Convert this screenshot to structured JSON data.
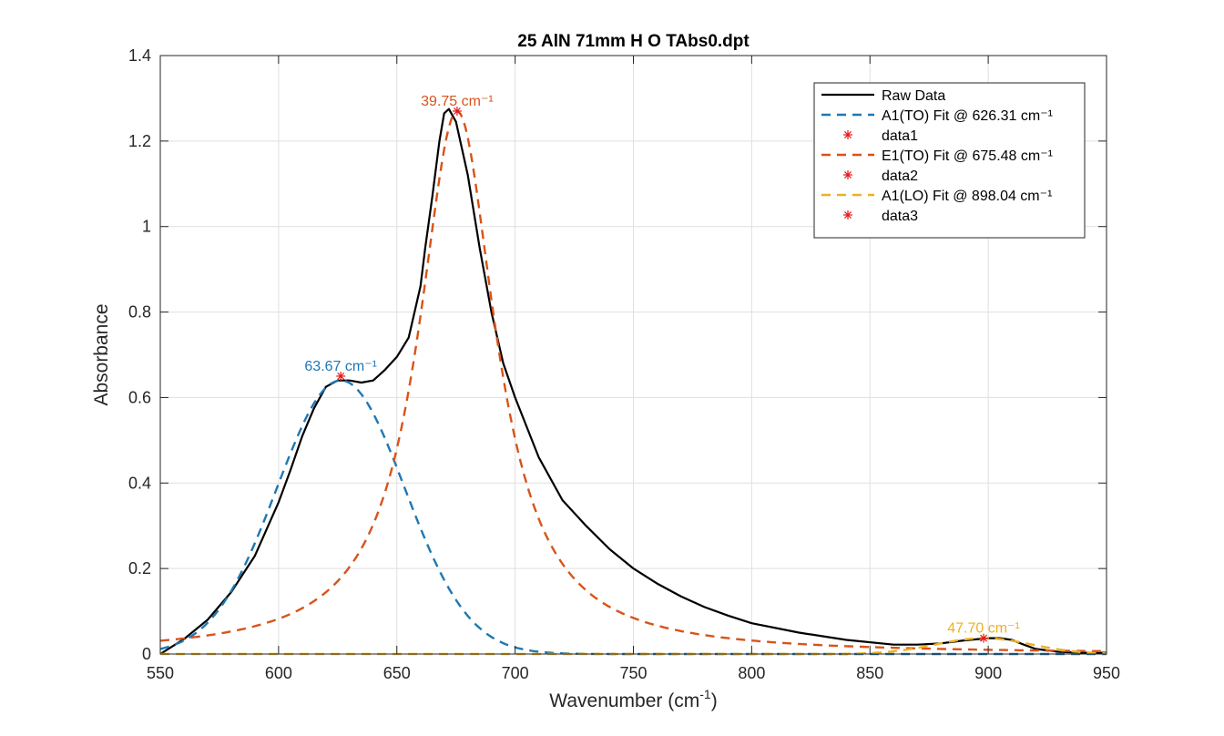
{
  "chart_data": {
    "type": "line",
    "title": "25 AlN 71mm H O TAbs0.dpt",
    "xlabel": "Wavenumber  (cm",
    "xlabel_sup": "-1",
    "xlabel_close": ")",
    "ylabel": "Absorbance",
    "xlim": [
      550,
      950
    ],
    "ylim": [
      0,
      1.4
    ],
    "xticks": [
      550,
      600,
      650,
      700,
      750,
      800,
      850,
      900,
      950
    ],
    "xtick_labels": [
      "550",
      "600",
      "650",
      "700",
      "750",
      "800",
      "850",
      "900",
      "950"
    ],
    "yticks": [
      0,
      0.2,
      0.4,
      0.6,
      0.8,
      1,
      1.2,
      1.4
    ],
    "ytick_labels": [
      "0",
      "0.2",
      "0.4",
      "0.6",
      "0.8",
      "1",
      "1.2",
      "1.4"
    ],
    "grid": true,
    "legend_position": "top-right",
    "series": [
      {
        "name": "Raw Data",
        "style": "solid",
        "color": "#000000",
        "x": [
          550,
          560,
          570,
          580,
          590,
          600,
          605,
          610,
          615,
          620,
          625,
          630,
          635,
          640,
          645,
          650,
          655,
          660,
          662,
          665,
          668,
          670,
          672,
          675,
          680,
          685,
          690,
          695,
          700,
          710,
          720,
          730,
          740,
          750,
          760,
          770,
          780,
          790,
          800,
          820,
          840,
          860,
          870,
          880,
          890,
          900,
          905,
          910,
          915,
          920,
          930,
          940,
          950
        ],
        "y": [
          0.0,
          0.035,
          0.08,
          0.145,
          0.23,
          0.355,
          0.43,
          0.51,
          0.575,
          0.625,
          0.64,
          0.64,
          0.635,
          0.64,
          0.665,
          0.695,
          0.74,
          0.86,
          0.95,
          1.07,
          1.2,
          1.265,
          1.275,
          1.245,
          1.12,
          0.95,
          0.8,
          0.68,
          0.6,
          0.46,
          0.36,
          0.3,
          0.245,
          0.2,
          0.165,
          0.135,
          0.11,
          0.09,
          0.072,
          0.05,
          0.033,
          0.022,
          0.022,
          0.025,
          0.032,
          0.037,
          0.037,
          0.033,
          0.022,
          0.012,
          0.005,
          0.003,
          0.003
        ]
      },
      {
        "name": "A1(TO) Fit @ 626.31 cm⁻¹",
        "style": "dashed",
        "color": "#1f77b4",
        "center": 626.31,
        "width": 63.67,
        "amplitude": 0.64,
        "shape": "gaussian",
        "x_start": 550,
        "x_end": 950
      },
      {
        "name": "data1",
        "style": "marker",
        "color": "#e3191c",
        "x": 626.31,
        "y": 0.65
      },
      {
        "name": "E1(TO) Fit @ 675.48 cm⁻¹",
        "style": "dashed",
        "color": "#d95319",
        "center": 675.48,
        "width": 39.75,
        "amplitude": 1.27,
        "shape": "lorentzian",
        "x_start": 550,
        "x_end": 950
      },
      {
        "name": "data2",
        "style": "marker",
        "color": "#e3191c",
        "x": 675.48,
        "y": 1.27
      },
      {
        "name": "A1(LO) Fit @ 898.04 cm⁻¹",
        "style": "dashed",
        "color": "#edb120",
        "center": 898.04,
        "width": 47.7,
        "amplitude": 0.037,
        "shape": "gaussian",
        "x_start": 550,
        "x_end": 950
      },
      {
        "name": "data3",
        "style": "marker",
        "color": "#e3191c",
        "x": 898.04,
        "y": 0.037
      }
    ],
    "annotations": [
      {
        "text": "63.67 cm⁻¹",
        "x": 626.31,
        "y": 0.65,
        "color": "#1f77b4"
      },
      {
        "text": "39.75 cm⁻¹",
        "x": 675.48,
        "y": 1.27,
        "color": "#d95319"
      },
      {
        "text": "47.70 cm⁻¹",
        "x": 898.04,
        "y": 0.037,
        "color": "#edb120"
      }
    ]
  }
}
